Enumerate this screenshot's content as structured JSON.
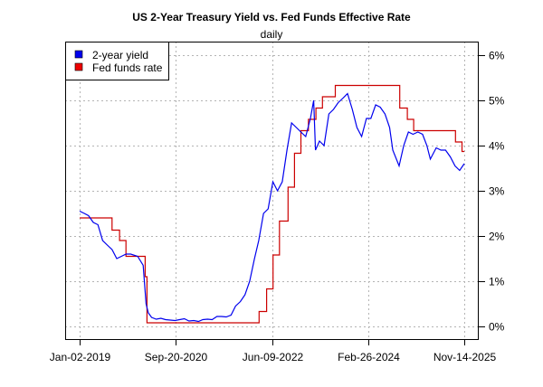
{
  "chart_data": {
    "type": "line",
    "title": "US 2-Year Treasury Yield vs. Fed Funds Effective Rate",
    "subtitle": "daily",
    "xlabel": "",
    "ylabel": "",
    "x_ticks": [
      "Jan-02-2019",
      "Sep-20-2020",
      "Jun-09-2022",
      "Feb-26-2024",
      "Nov-14-2025"
    ],
    "x_tick_dates": [
      "2019-01-02",
      "2020-09-20",
      "2022-06-09",
      "2024-02-26",
      "2025-11-14"
    ],
    "y_ticks": [
      "0%",
      "1%",
      "2%",
      "3%",
      "4%",
      "5%",
      "6%"
    ],
    "ylim": [
      0,
      6
    ],
    "y_axis_side": "right",
    "grid": true,
    "legend_position": "top-left",
    "series": [
      {
        "name": "2-year yield",
        "color": "#0000ee",
        "style": "line",
        "points": [
          [
            "2019-01-02",
            2.55
          ],
          [
            "2019-02-01",
            2.5
          ],
          [
            "2019-03-01",
            2.45
          ],
          [
            "2019-04-01",
            2.3
          ],
          [
            "2019-05-01",
            2.25
          ],
          [
            "2019-06-01",
            1.9
          ],
          [
            "2019-07-01",
            1.8
          ],
          [
            "2019-08-01",
            1.7
          ],
          [
            "2019-09-01",
            1.5
          ],
          [
            "2019-10-01",
            1.55
          ],
          [
            "2019-11-01",
            1.6
          ],
          [
            "2019-12-01",
            1.6
          ],
          [
            "2020-01-15",
            1.55
          ],
          [
            "2020-02-20",
            1.35
          ],
          [
            "2020-03-10",
            0.5
          ],
          [
            "2020-03-25",
            0.3
          ],
          [
            "2020-04-15",
            0.2
          ],
          [
            "2020-05-15",
            0.16
          ],
          [
            "2020-06-15",
            0.18
          ],
          [
            "2020-07-15",
            0.15
          ],
          [
            "2020-08-15",
            0.14
          ],
          [
            "2020-09-15",
            0.13
          ],
          [
            "2020-10-15",
            0.15
          ],
          [
            "2020-11-15",
            0.17
          ],
          [
            "2020-12-15",
            0.12
          ],
          [
            "2021-01-15",
            0.13
          ],
          [
            "2021-02-15",
            0.11
          ],
          [
            "2021-03-15",
            0.15
          ],
          [
            "2021-04-15",
            0.16
          ],
          [
            "2021-05-15",
            0.15
          ],
          [
            "2021-06-15",
            0.22
          ],
          [
            "2021-07-15",
            0.22
          ],
          [
            "2021-08-15",
            0.21
          ],
          [
            "2021-09-15",
            0.25
          ],
          [
            "2021-10-15",
            0.45
          ],
          [
            "2021-11-15",
            0.55
          ],
          [
            "2021-12-15",
            0.7
          ],
          [
            "2022-01-15",
            1.0
          ],
          [
            "2022-02-15",
            1.5
          ],
          [
            "2022-03-15",
            1.9
          ],
          [
            "2022-04-15",
            2.5
          ],
          [
            "2022-05-15",
            2.6
          ],
          [
            "2022-06-15",
            3.2
          ],
          [
            "2022-07-15",
            3.0
          ],
          [
            "2022-08-15",
            3.2
          ],
          [
            "2022-09-15",
            3.9
          ],
          [
            "2022-10-15",
            4.5
          ],
          [
            "2022-11-15",
            4.4
          ],
          [
            "2022-12-15",
            4.3
          ],
          [
            "2023-01-15",
            4.2
          ],
          [
            "2023-02-15",
            4.6
          ],
          [
            "2023-03-08",
            5.0
          ],
          [
            "2023-03-20",
            3.9
          ],
          [
            "2023-04-15",
            4.1
          ],
          [
            "2023-05-15",
            4.0
          ],
          [
            "2023-06-15",
            4.7
          ],
          [
            "2023-07-15",
            4.8
          ],
          [
            "2023-08-15",
            4.95
          ],
          [
            "2023-09-15",
            5.05
          ],
          [
            "2023-10-15",
            5.15
          ],
          [
            "2023-11-15",
            4.8
          ],
          [
            "2023-12-15",
            4.4
          ],
          [
            "2024-01-15",
            4.2
          ],
          [
            "2024-02-15",
            4.6
          ],
          [
            "2024-03-15",
            4.6
          ],
          [
            "2024-04-15",
            4.9
          ],
          [
            "2024-05-15",
            4.85
          ],
          [
            "2024-06-15",
            4.7
          ],
          [
            "2024-07-15",
            4.4
          ],
          [
            "2024-08-05",
            3.9
          ],
          [
            "2024-09-15",
            3.55
          ],
          [
            "2024-10-15",
            4.0
          ],
          [
            "2024-11-15",
            4.3
          ],
          [
            "2024-12-15",
            4.25
          ],
          [
            "2025-01-15",
            4.3
          ],
          [
            "2025-02-15",
            4.25
          ],
          [
            "2025-03-15",
            4.0
          ],
          [
            "2025-04-07",
            3.7
          ],
          [
            "2025-05-15",
            3.95
          ],
          [
            "2025-06-15",
            3.9
          ],
          [
            "2025-07-15",
            3.9
          ],
          [
            "2025-08-15",
            3.75
          ],
          [
            "2025-09-15",
            3.55
          ],
          [
            "2025-10-15",
            3.45
          ],
          [
            "2025-11-14",
            3.6
          ]
        ]
      },
      {
        "name": "Fed funds rate",
        "color": "#cc0000",
        "style": "step",
        "points": [
          [
            "2019-01-02",
            2.4
          ],
          [
            "2019-08-01",
            2.13
          ],
          [
            "2019-09-19",
            1.9
          ],
          [
            "2019-10-31",
            1.55
          ],
          [
            "2020-03-04",
            1.1
          ],
          [
            "2020-03-16",
            0.08
          ],
          [
            "2022-03-17",
            0.33
          ],
          [
            "2022-05-05",
            0.83
          ],
          [
            "2022-06-16",
            1.58
          ],
          [
            "2022-07-28",
            2.33
          ],
          [
            "2022-09-22",
            3.08
          ],
          [
            "2022-11-03",
            3.83
          ],
          [
            "2022-12-15",
            4.33
          ],
          [
            "2023-02-02",
            4.58
          ],
          [
            "2023-03-23",
            4.83
          ],
          [
            "2023-05-04",
            5.08
          ],
          [
            "2023-07-27",
            5.33
          ],
          [
            "2024-09-19",
            4.83
          ],
          [
            "2024-11-08",
            4.58
          ],
          [
            "2024-12-19",
            4.33
          ],
          [
            "2025-09-18",
            4.08
          ],
          [
            "2025-10-30",
            3.87
          ],
          [
            "2025-11-14",
            3.87
          ]
        ]
      }
    ]
  }
}
